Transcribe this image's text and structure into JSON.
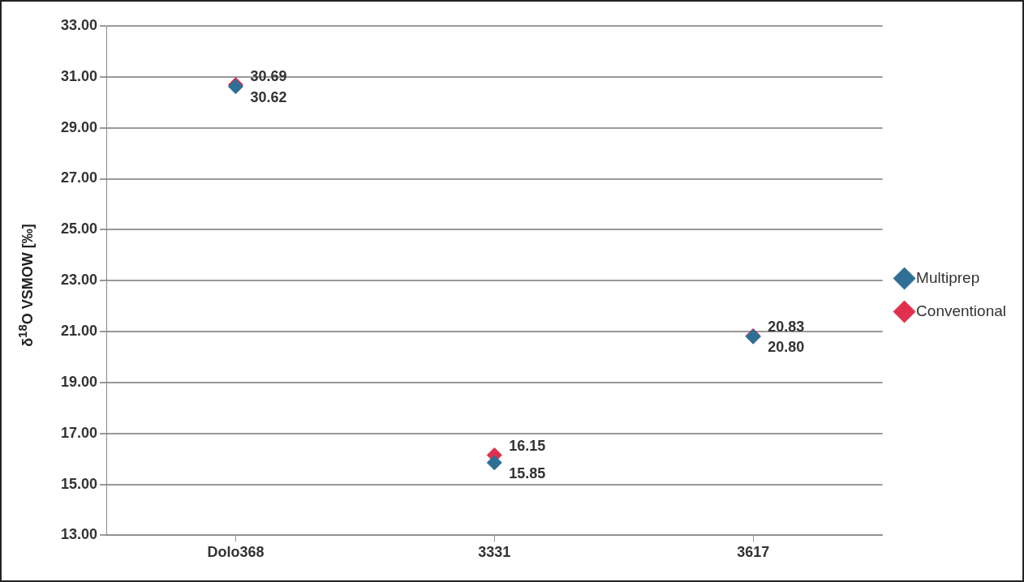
{
  "chart_data": {
    "type": "scatter",
    "ylabel": "δ$^{18}$O VSMOW [‰]",
    "categories": [
      "Dolo368",
      "3331",
      "3617"
    ],
    "series": [
      {
        "name": "Multiprep",
        "color": "#2e6f95",
        "values": [
          30.62,
          15.85,
          20.8
        ],
        "value_labels": [
          "30.62",
          "15.85",
          "20.80"
        ]
      },
      {
        "name": "Conventional",
        "color": "#e0304e",
        "values": [
          30.69,
          16.15,
          20.83
        ],
        "value_labels": [
          "30.69",
          "16.15",
          "20.83"
        ]
      }
    ],
    "ylim": [
      13,
      33
    ],
    "yticks": [
      {
        "value": 13,
        "label": "13.00"
      },
      {
        "value": 15,
        "label": "15.00"
      },
      {
        "value": 17,
        "label": "17.00"
      },
      {
        "value": 19,
        "label": "19.00"
      },
      {
        "value": 21,
        "label": "21.00"
      },
      {
        "value": 23,
        "label": "23.00"
      },
      {
        "value": 25,
        "label": "25.00"
      },
      {
        "value": 27,
        "label": "27.00"
      },
      {
        "value": 29,
        "label": "29.00"
      },
      {
        "value": 31,
        "label": "31.00"
      },
      {
        "value": 33,
        "label": "33.00"
      }
    ],
    "grid": "y",
    "legend": "right",
    "marker": "diamond"
  }
}
